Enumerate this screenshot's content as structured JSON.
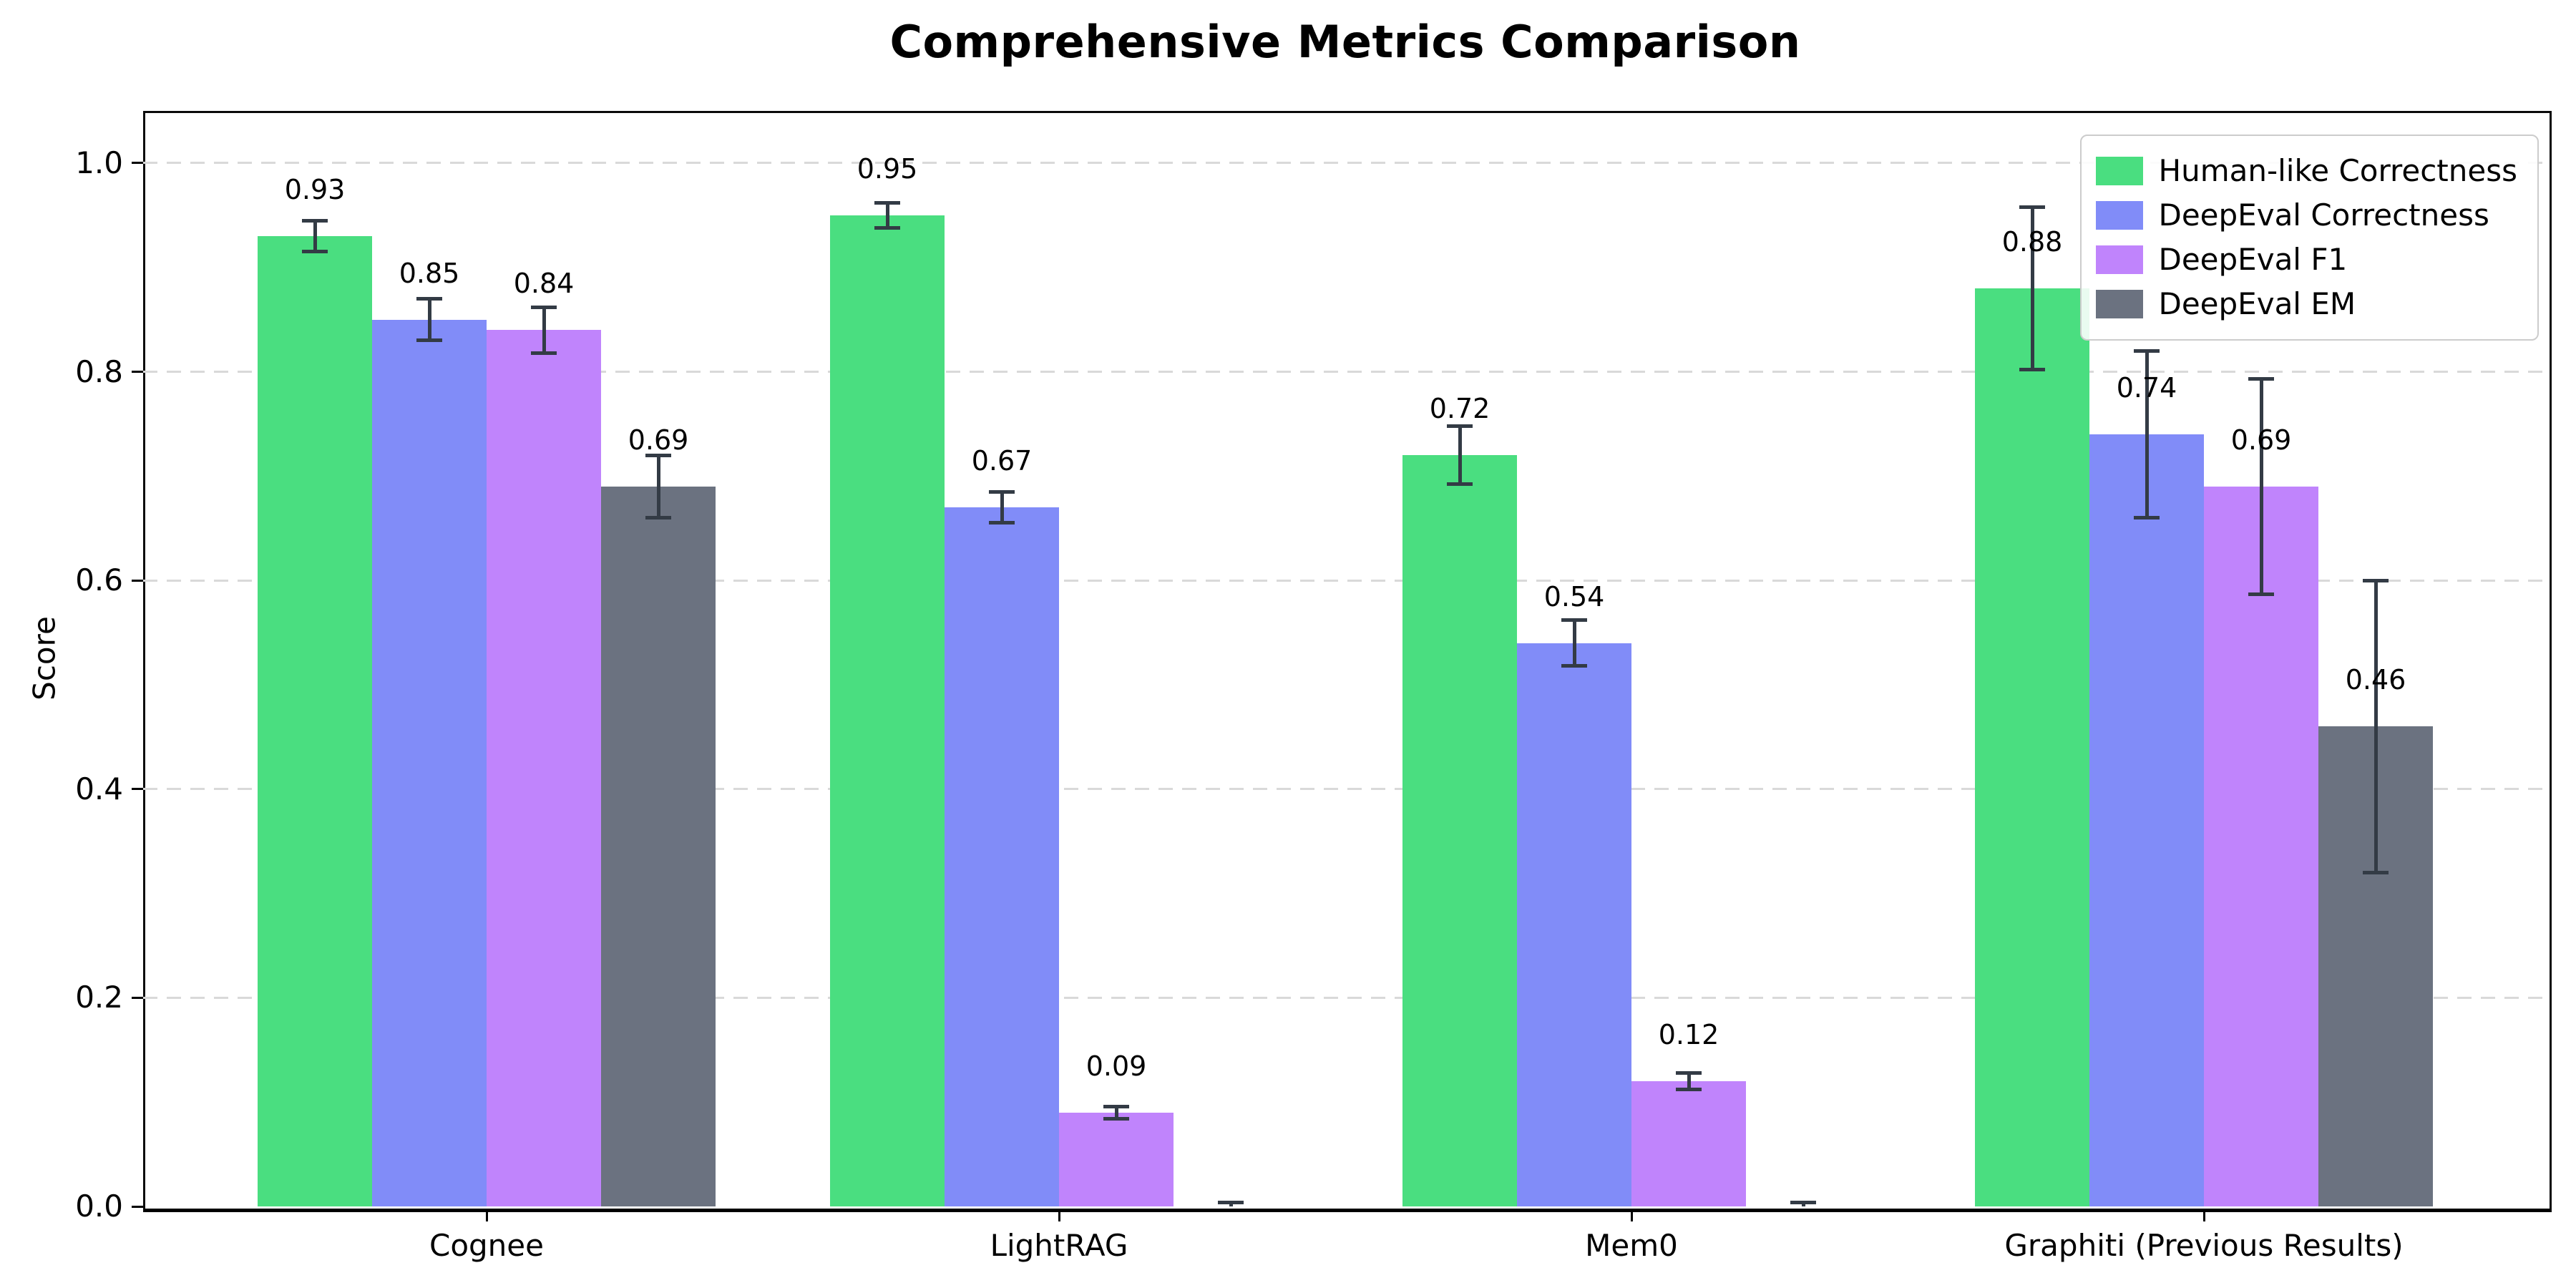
{
  "chart_data": {
    "type": "bar",
    "title": "Comprehensive Metrics Comparison",
    "xlabel": "",
    "ylabel": "Score",
    "ylim": [
      0,
      1.05
    ],
    "yticks": [
      0.0,
      0.2,
      0.4,
      0.6,
      0.8,
      1.0
    ],
    "grid": "horizontal dashed gridlines at each y tick",
    "legend_position": "upper right",
    "categories": [
      "Cognee",
      "LightRAG",
      "Mem0",
      "Graphiti (Previous Results)"
    ],
    "series": [
      {
        "name": "Human-like Correctness",
        "color": "#4ade80",
        "values": [
          0.93,
          0.95,
          0.72,
          0.88
        ],
        "errors": [
          0.015,
          0.012,
          0.028,
          0.078
        ],
        "labels": [
          "0.93",
          "0.95",
          "0.72",
          "0.88"
        ]
      },
      {
        "name": "DeepEval Correctness",
        "color": "#818cf8",
        "values": [
          0.85,
          0.67,
          0.54,
          0.74
        ],
        "errors": [
          0.02,
          0.015,
          0.022,
          0.08
        ],
        "labels": [
          "0.85",
          "0.67",
          "0.54",
          "0.74"
        ]
      },
      {
        "name": "DeepEval F1",
        "color": "#c084fc",
        "values": [
          0.84,
          0.09,
          0.12,
          0.69
        ],
        "errors": [
          0.022,
          0.006,
          0.008,
          0.103
        ],
        "labels": [
          "0.84",
          "0.09",
          "0.12",
          "0.69"
        ]
      },
      {
        "name": "DeepEval EM",
        "color": "#6b7280",
        "values": [
          0.69,
          0.0,
          0.0,
          0.46
        ],
        "errors": [
          0.03,
          0.004,
          0.004,
          0.14
        ],
        "labels": [
          "0.69",
          null,
          null,
          "0.46"
        ]
      }
    ],
    "colors": {
      "axis": "#000000",
      "grid": "#d9d9d9",
      "error_bar": "#333b45",
      "text": "#000000",
      "background": "#ffffff",
      "legend_border": "#cccccc"
    }
  }
}
